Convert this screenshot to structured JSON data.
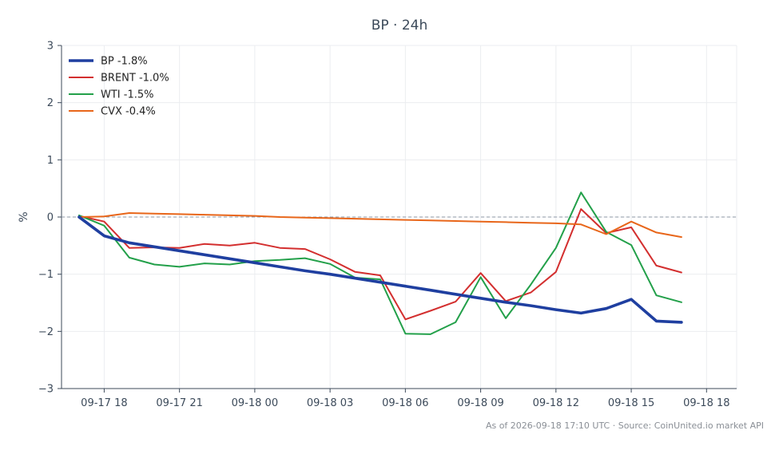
{
  "chart_data": {
    "type": "line",
    "title": "BP · 24h",
    "ylabel": "%",
    "xlabel": "",
    "ylim": [
      -3,
      3
    ],
    "xlim": [
      -0.7,
      26.2
    ],
    "x_ticks": [
      {
        "x": 1,
        "label": "09-17 18"
      },
      {
        "x": 4,
        "label": "09-17 21"
      },
      {
        "x": 7,
        "label": "09-18 00"
      },
      {
        "x": 10,
        "label": "09-18 03"
      },
      {
        "x": 13,
        "label": "09-18 06"
      },
      {
        "x": 16,
        "label": "09-18 09"
      },
      {
        "x": 19,
        "label": "09-18 12"
      },
      {
        "x": 22,
        "label": "09-18 15"
      },
      {
        "x": 25,
        "label": "09-18 18"
      }
    ],
    "y_ticks": [
      3,
      2,
      1,
      0,
      -1,
      -2,
      -3
    ],
    "grid": true,
    "zero_line": true,
    "legend_position": "top-left",
    "series": [
      {
        "name": "BP -1.8%",
        "color": "#1f3fa0",
        "style": "thick",
        "x": [
          0,
          1,
          2,
          3,
          4,
          5,
          6,
          7,
          8,
          9,
          10,
          11,
          12,
          13,
          14,
          15,
          16,
          17,
          18,
          19,
          20,
          21,
          22,
          23,
          24
        ],
        "y": [
          0.0,
          -0.33,
          -0.45,
          -0.52,
          -0.59,
          -0.66,
          -0.73,
          -0.8,
          -0.87,
          -0.94,
          -1.0,
          -1.07,
          -1.14,
          -1.21,
          -1.28,
          -1.35,
          -1.42,
          -1.49,
          -1.55,
          -1.62,
          -1.68,
          -1.6,
          -1.44,
          -1.82,
          -1.84
        ]
      },
      {
        "name": "BRENT -1.0%",
        "color": "#d32f2f",
        "style": "normal",
        "x": [
          0,
          1,
          2,
          3,
          4,
          5,
          6,
          7,
          8,
          9,
          10,
          11,
          12,
          13,
          14,
          15,
          16,
          17,
          18,
          19,
          20,
          21,
          22,
          23,
          24
        ],
        "y": [
          0.02,
          -0.08,
          -0.54,
          -0.53,
          -0.54,
          -0.47,
          -0.5,
          -0.45,
          -0.54,
          -0.56,
          -0.74,
          -0.96,
          -1.02,
          -1.79,
          -1.64,
          -1.48,
          -0.98,
          -1.47,
          -1.32,
          -0.96,
          0.14,
          -0.28,
          -0.18,
          -0.85,
          -0.97
        ]
      },
      {
        "name": "WTI -1.5%",
        "color": "#23a04a",
        "style": "normal",
        "x": [
          0,
          1,
          2,
          3,
          4,
          5,
          6,
          7,
          8,
          9,
          10,
          11,
          12,
          13,
          14,
          15,
          16,
          17,
          18,
          19,
          20,
          21,
          22,
          23,
          24
        ],
        "y": [
          0.03,
          -0.15,
          -0.71,
          -0.83,
          -0.87,
          -0.81,
          -0.83,
          -0.77,
          -0.75,
          -0.72,
          -0.82,
          -1.06,
          -1.09,
          -2.04,
          -2.05,
          -1.84,
          -1.05,
          -1.77,
          -1.18,
          -0.54,
          0.43,
          -0.26,
          -0.49,
          -1.37,
          -1.49
        ]
      },
      {
        "name": "CVX -0.4%",
        "color": "#e8661a",
        "style": "normal",
        "x": [
          0,
          1,
          2,
          3,
          4,
          5,
          6,
          7,
          8,
          9,
          10,
          11,
          12,
          13,
          14,
          15,
          16,
          17,
          18,
          19,
          20,
          21,
          22,
          23,
          24
        ],
        "y": [
          0.0,
          0.01,
          0.07,
          0.06,
          0.05,
          0.04,
          0.03,
          0.02,
          0.0,
          -0.01,
          -0.02,
          -0.03,
          -0.04,
          -0.05,
          -0.06,
          -0.07,
          -0.08,
          -0.09,
          -0.1,
          -0.11,
          -0.13,
          -0.3,
          -0.08,
          -0.27,
          -0.35
        ]
      }
    ],
    "footer": "As of 2026-09-18 17:10 UTC · Source: CoinUnited.io market API"
  }
}
